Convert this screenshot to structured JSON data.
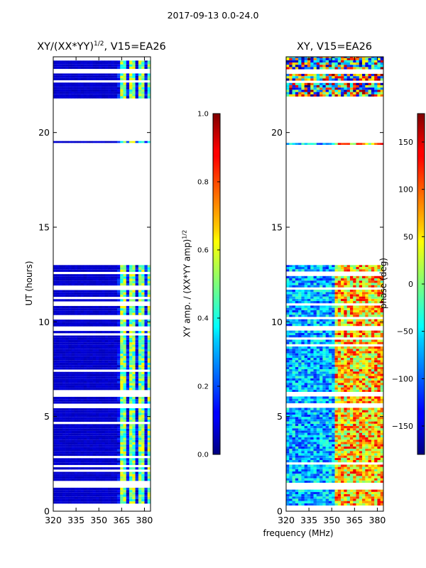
{
  "figure_title": "2017-09-13 0.0-24.0",
  "chart_data": [
    {
      "type": "heatmap",
      "title_prefix": "XY/(XX*YY)",
      "title_sup": "1/2",
      "title_suffix": ", V15=EA26",
      "xlabel": "",
      "ylabel": "UT (hours)",
      "xlim": [
        320,
        384
      ],
      "ylim": [
        0,
        24
      ],
      "xticks": [
        320,
        335,
        350,
        365,
        380
      ],
      "yticks": [
        0,
        5,
        10,
        15,
        20
      ],
      "colorbar": {
        "label_prefix": "XY amp. / (XX*YY amp)",
        "label_sup": "1/2",
        "range": [
          0.0,
          1.0
        ],
        "ticks": [
          "0.0",
          "0.2",
          "0.4",
          "0.6",
          "0.8",
          "1.0"
        ],
        "colormap": "jet"
      },
      "data_bands_ut": [
        [
          0.4,
          13.0
        ],
        [
          19.45,
          19.55
        ],
        [
          21.8,
          23.8
        ]
      ],
      "flagged_gaps_ut": [
        [
          1.2,
          1.5
        ],
        [
          5.4,
          5.6
        ],
        [
          6.0,
          6.2
        ],
        [
          9.5,
          9.7
        ],
        [
          11.6,
          11.8
        ],
        [
          12.4,
          12.6
        ],
        [
          22.6,
          22.7
        ],
        [
          23.1,
          23.3
        ]
      ],
      "signal_band_mhz": [
        361,
        382
      ]
    },
    {
      "type": "heatmap",
      "title_prefix": "XY, V15=EA26",
      "title_sup": "",
      "title_suffix": "",
      "xlabel": "frequency (MHz)",
      "ylabel": "",
      "xlim": [
        320,
        384
      ],
      "ylim": [
        0,
        24
      ],
      "xticks": [
        320,
        335,
        350,
        365,
        380
      ],
      "yticks": [
        0,
        5,
        10,
        15,
        20
      ],
      "colorbar": {
        "label_prefix": "phase (deg)",
        "label_sup": "",
        "range": [
          -180,
          180
        ],
        "ticks": [
          "−150",
          "−100",
          "−50",
          "0",
          "50",
          "100",
          "150"
        ],
        "tick_values": [
          -150,
          -100,
          -50,
          0,
          50,
          100,
          150
        ],
        "colormap": "jet"
      },
      "data_bands_ut": [
        [
          0.3,
          13.0
        ],
        [
          19.35,
          19.45
        ],
        [
          21.9,
          24.0
        ]
      ],
      "flagged_gaps_ut": [
        [
          1.2,
          1.5
        ],
        [
          5.4,
          5.6
        ],
        [
          6.0,
          6.2
        ],
        [
          9.5,
          9.7
        ],
        [
          11.6,
          11.8
        ],
        [
          12.4,
          12.6
        ],
        [
          22.6,
          22.7
        ],
        [
          23.1,
          23.3
        ]
      ]
    }
  ]
}
